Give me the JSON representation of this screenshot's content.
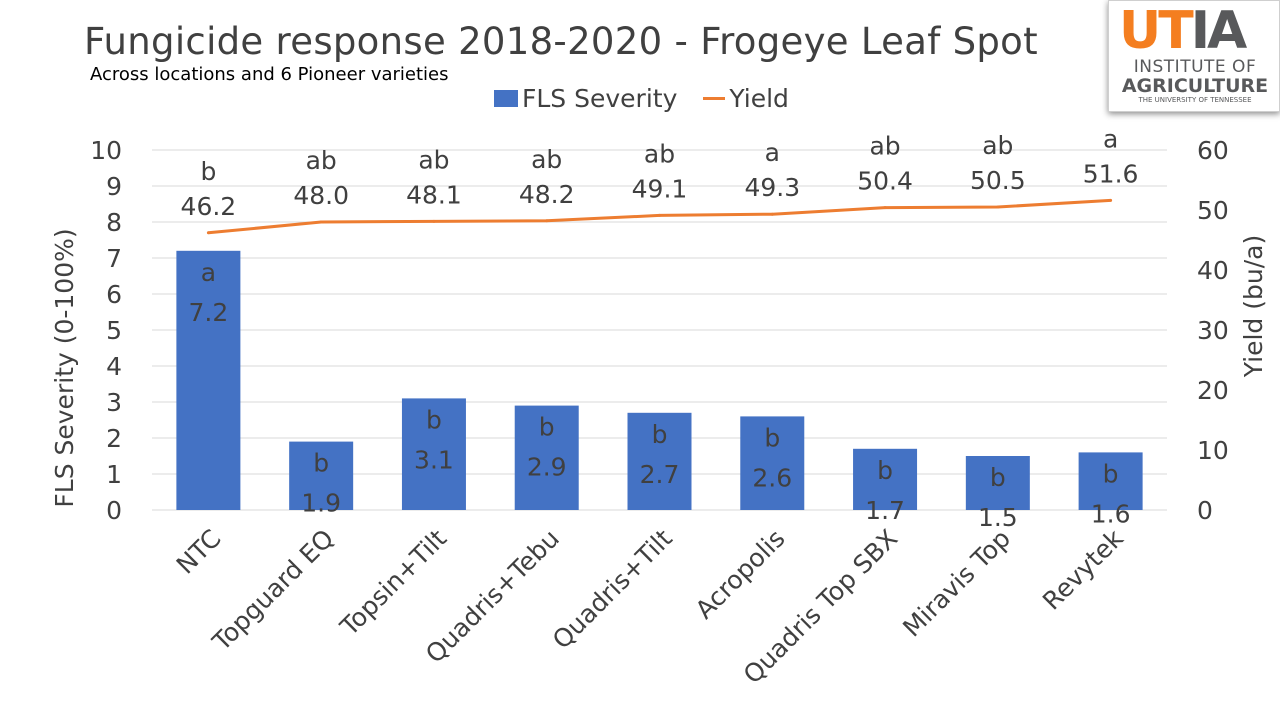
{
  "chart_data": {
    "type": "bar",
    "title": "Fungicide response 2018-2020 - Frogeye Leaf Spot",
    "subtitle": "Across locations and 6 Pioneer varieties",
    "categories": [
      "NTC",
      "Topguard EQ",
      "Topsin+Tilt",
      "Quadris+Tebu",
      "Quadris+Tilt",
      "Acropolis",
      "Quadris Top SBX",
      "Miravis Top",
      "Revytek"
    ],
    "series": [
      {
        "name": "FLS Severity",
        "type": "bar",
        "axis": "left",
        "color": "#4472c4",
        "values": [
          7.2,
          1.9,
          3.1,
          2.9,
          2.7,
          2.6,
          1.7,
          1.5,
          1.6
        ],
        "value_labels": [
          "7.2",
          "1.9",
          "3.1",
          "2.9",
          "2.7",
          "2.6",
          "1.7",
          "1.5",
          "1.6"
        ],
        "letters": [
          "a",
          "b",
          "b",
          "b",
          "b",
          "b",
          "b",
          "b",
          "b"
        ]
      },
      {
        "name": "Yield",
        "type": "line",
        "axis": "right",
        "color": "#ed7d31",
        "values": [
          46.2,
          48.0,
          48.1,
          48.2,
          49.1,
          49.3,
          50.4,
          50.5,
          51.6
        ],
        "value_labels": [
          "46.2",
          "48.0",
          "48.1",
          "48.2",
          "49.1",
          "49.3",
          "50.4",
          "50.5",
          "51.6"
        ],
        "letters": [
          "b",
          "ab",
          "ab",
          "ab",
          "ab",
          "a",
          "ab",
          "ab",
          "a"
        ]
      }
    ],
    "ylabel": "FLS Severity (0-100%)",
    "ylim": [
      0,
      10
    ],
    "yticks": [
      "0",
      "1",
      "2",
      "3",
      "4",
      "5",
      "6",
      "7",
      "8",
      "9",
      "10"
    ],
    "y2label": "Yield (bu/a)",
    "y2lim": [
      0,
      60
    ],
    "y2ticks": [
      "0",
      "10",
      "20",
      "30",
      "40",
      "50",
      "60"
    ],
    "grid": true,
    "legend": "top-center"
  },
  "logo": {
    "mark_ut": "UT",
    "mark_ia": "IA",
    "line1": "INSTITUTE OF",
    "line2": "AGRICULTURE",
    "line3": "THE UNIVERSITY OF TENNESSEE"
  },
  "colors": {
    "bar": "#4472c4",
    "line": "#ed7d31",
    "grid": "#d9d9d9",
    "text": "#404040"
  }
}
